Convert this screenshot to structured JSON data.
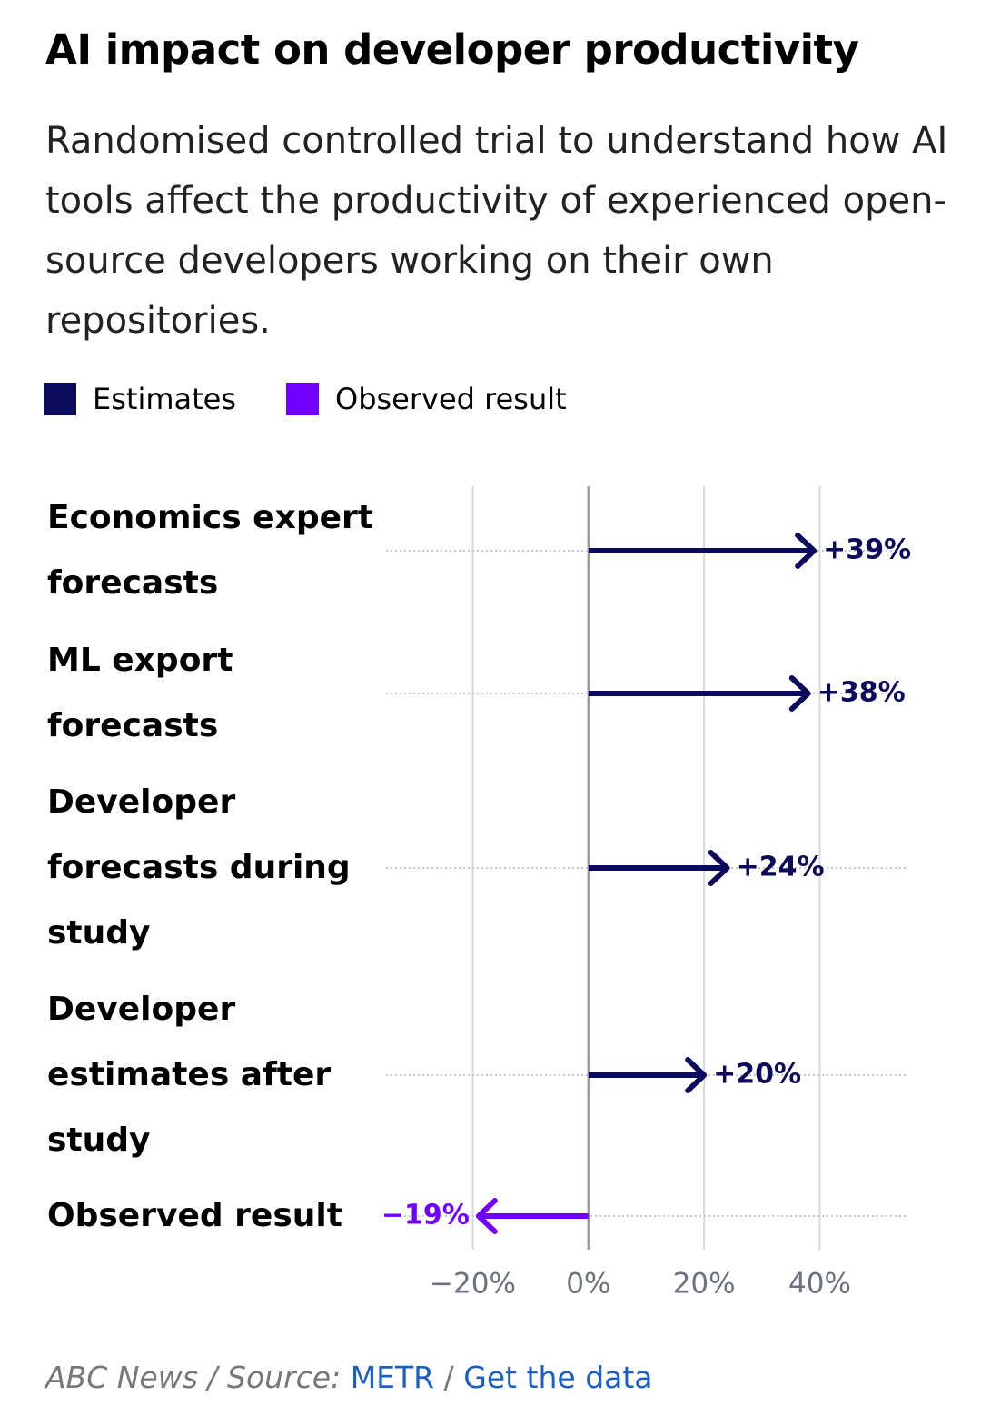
{
  "chart_data": {
    "type": "arrow",
    "title": "AI impact on developer productivity",
    "subtitle": "Randomised controlled trial to understand how AI tools affect the productivity of experienced open-source developers working on their own repositories.",
    "categories": [
      "Economics expert forecasts",
      "ML export forecasts",
      "Developer forecasts during study",
      "Developer estimates after study",
      "Observed result"
    ],
    "series": [
      {
        "name": "Estimates",
        "color": "#0c0a5c",
        "values": [
          39,
          38,
          24,
          20,
          null
        ],
        "value_labels": [
          "+39%",
          "+38%",
          "+24%",
          "+20%",
          null
        ]
      },
      {
        "name": "Observed result",
        "color": "#7000ff",
        "values": [
          null,
          null,
          null,
          null,
          -19
        ],
        "value_labels": [
          null,
          null,
          null,
          null,
          "−19%"
        ]
      }
    ],
    "xlim": [
      -35,
      55
    ],
    "xticks": [
      {
        "value": -20,
        "label": "−20%"
      },
      {
        "value": 0,
        "label": "0%"
      },
      {
        "value": 20,
        "label": "20%"
      },
      {
        "value": 40,
        "label": "40%"
      }
    ],
    "grid": true,
    "footer": {
      "credit": "ABC News / Source:",
      "source": "METR",
      "separator": "/",
      "link": "Get the data"
    }
  }
}
